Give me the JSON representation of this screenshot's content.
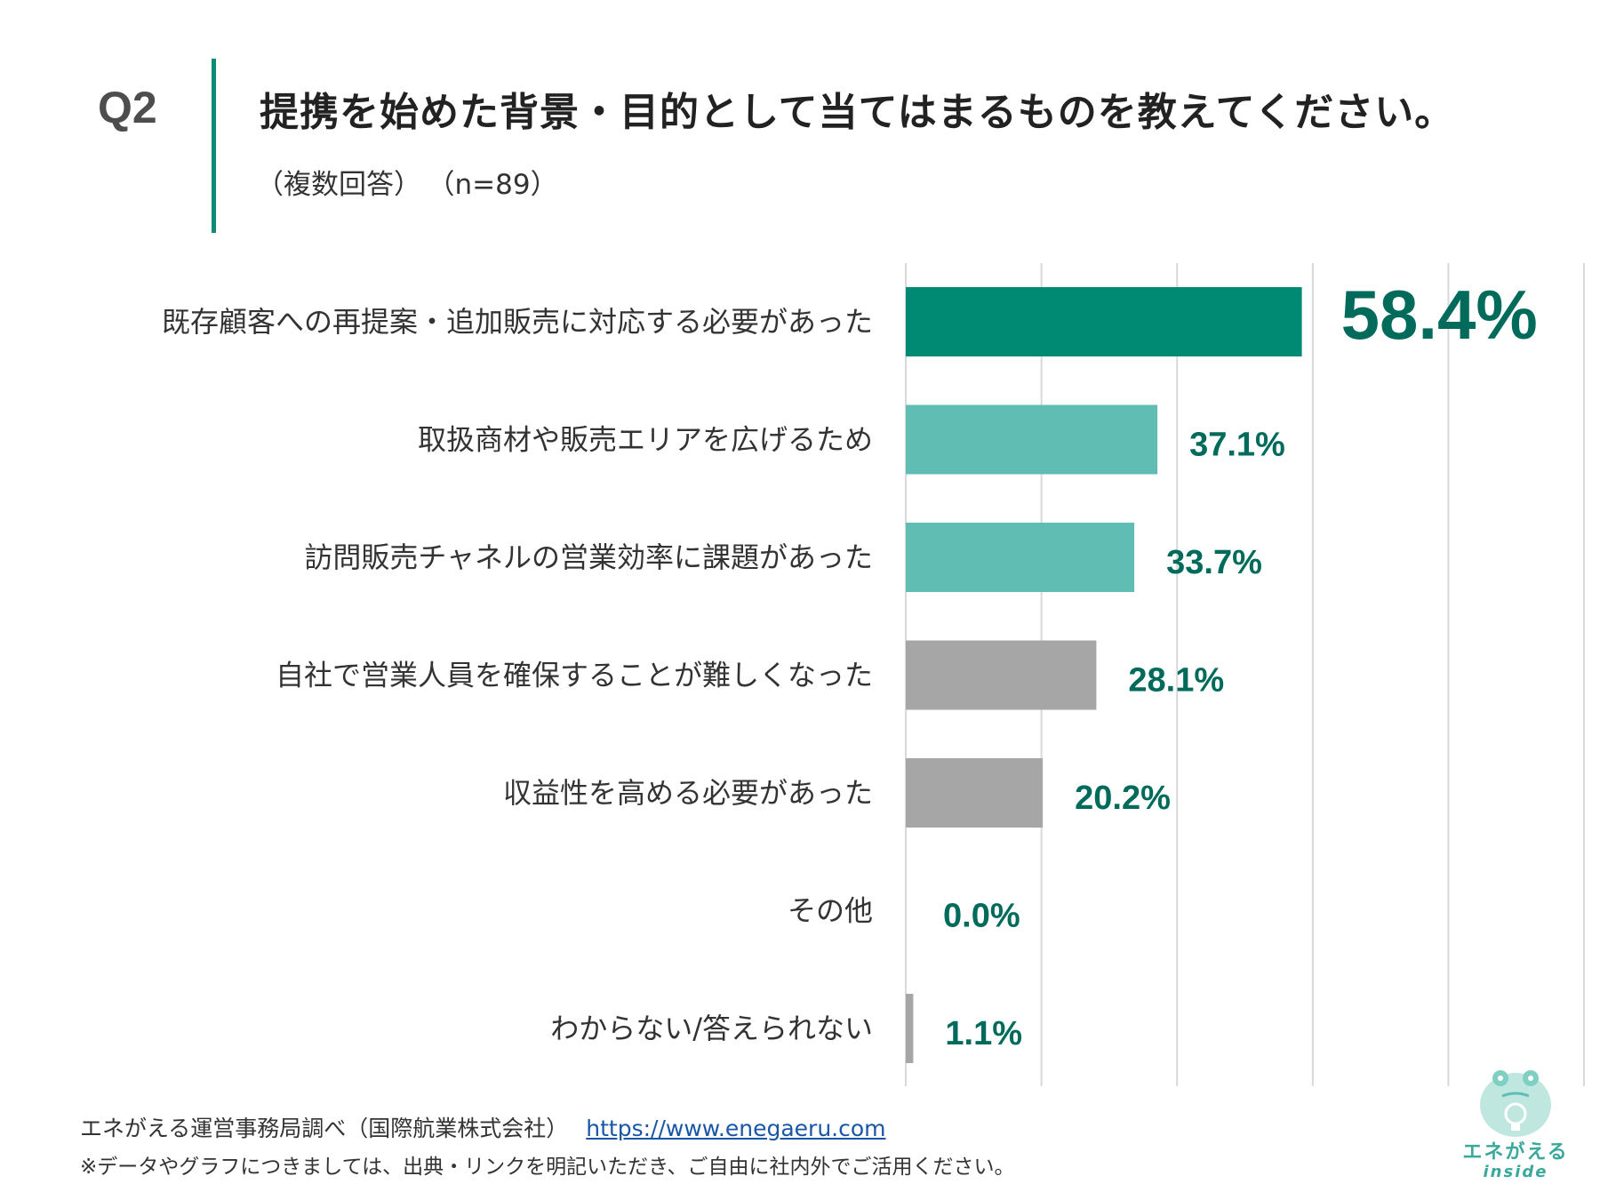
{
  "header": {
    "q_number": "Q2",
    "title": "提携を始めた背景・目的として当てはまるものを教えてください。",
    "answer_type": "（複数回答）",
    "sample_size": "（n=89）"
  },
  "colors": {
    "accent": "#0d8b78",
    "highlight_bar": "#008a74",
    "teal_bar": "#5fbdb3",
    "gray_bar": "#a6a6a6",
    "value_text": "#006b5b",
    "gridline": "#d9d9d9"
  },
  "chart_data": {
    "type": "bar",
    "orientation": "horizontal",
    "categories": [
      "既存顧客への再提案・追加販売に対応する必要があった",
      "取扱商材や販売エリアを広げるため",
      "訪問販売チャネルの営業効率に課題があった",
      "自社で営業人員を確保することが難しくなった",
      "収益性を高める必要があった",
      "その他",
      "わからない/答えられない"
    ],
    "values": [
      58.4,
      37.1,
      33.7,
      28.1,
      20.2,
      0.0,
      1.1
    ],
    "value_labels": [
      "58.4%",
      "37.1%",
      "33.7%",
      "28.1%",
      "20.2%",
      "0.0%",
      "1.1%"
    ],
    "bar_color_groups": [
      "highlight",
      "teal",
      "teal",
      "gray",
      "gray",
      "gray",
      "gray"
    ],
    "xlim": [
      0,
      100
    ],
    "grid_step": 20,
    "grid": true,
    "legend": "none"
  },
  "footer": {
    "source": "エネがえる運営事務局調べ（国際航業株式会社）",
    "url": "https://www.enegaeru.com",
    "note": "※データやグラフにつきましては、出典・リンクを明記いただき、ご自由に社内外でご活用ください。"
  },
  "logo": {
    "icon": "frog-lightbulb-icon",
    "name": "エネがえる",
    "sub": "inside"
  }
}
